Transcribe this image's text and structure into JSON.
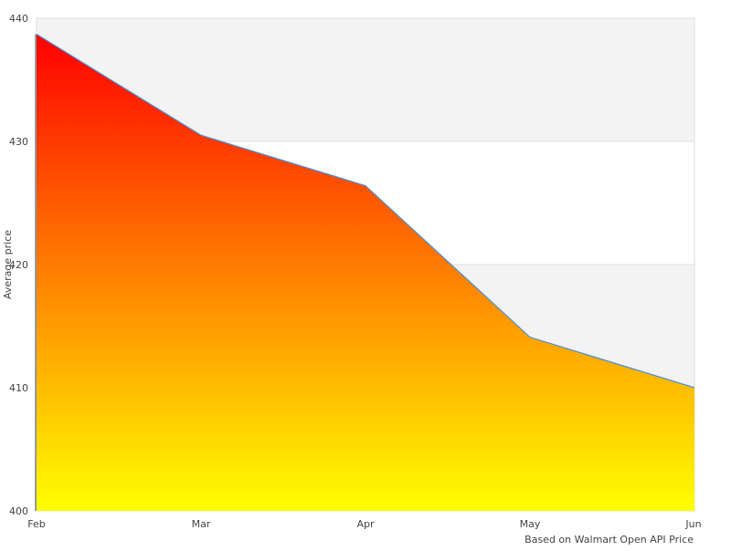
{
  "chart_data": {
    "type": "area",
    "title": "",
    "xlabel": "",
    "ylabel": "Average price",
    "caption": "Based on Walmart Open API Price",
    "categories": [
      "Feb",
      "Mar",
      "Apr",
      "May",
      "Jun"
    ],
    "values": [
      438.7,
      430.5,
      426.4,
      414.1,
      410.0
    ],
    "ylim": [
      400,
      440
    ],
    "yticks": [
      400,
      410,
      420,
      430,
      440
    ],
    "grid": "alternating horizontal bands",
    "legend": "none",
    "colors": {
      "fill_top": "#ff0000",
      "fill_bottom": "#ffff00",
      "line": "#4a90d9",
      "band": "#f3f3f3",
      "grid": "#dddddd"
    }
  }
}
